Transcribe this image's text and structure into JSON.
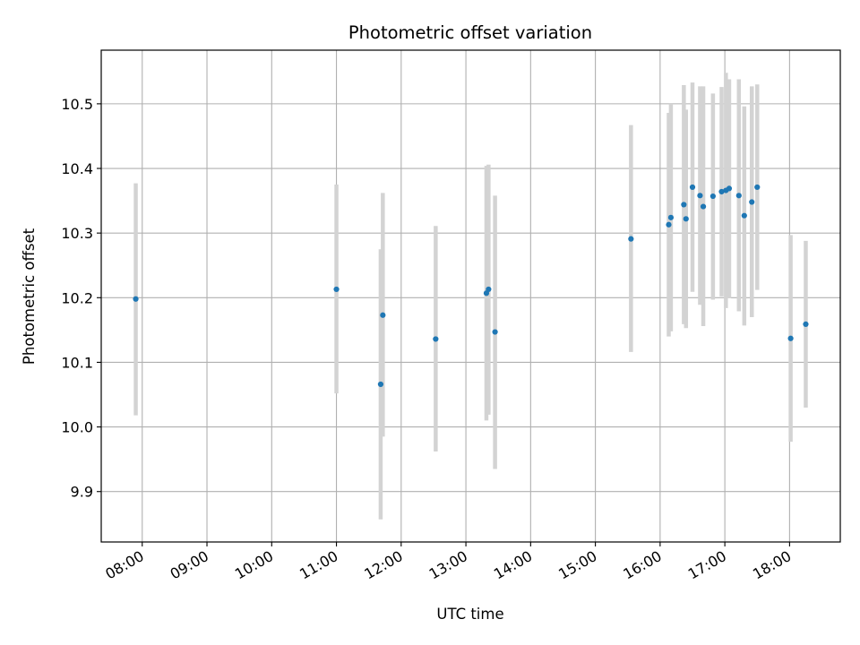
{
  "chart_data": {
    "type": "scatter",
    "title": "Photometric offset variation",
    "xlabel": "UTC time",
    "ylabel": "Photometric offset",
    "grid": true,
    "x_tick_labels": [
      "08:00",
      "09:00",
      "10:00",
      "11:00",
      "12:00",
      "13:00",
      "14:00",
      "15:00",
      "16:00",
      "17:00",
      "18:00"
    ],
    "y_tick_labels": [
      "9.9",
      "10.0",
      "10.1",
      "10.2",
      "10.3",
      "10.4",
      "10.5"
    ],
    "xlim": [
      "07:22",
      "18:47"
    ],
    "ylim": [
      9.822,
      10.583
    ],
    "colors": {
      "point": "#1f77b4",
      "errorbar": "#d3d3d3",
      "grid": "#b0b0b0"
    },
    "series": [
      {
        "points": [
          {
            "x": "07:54",
            "y": 10.198,
            "yerr_low": 10.018,
            "yerr_high": 10.377
          },
          {
            "x": "11:00",
            "y": 10.213,
            "yerr_low": 10.052,
            "yerr_high": 10.375
          },
          {
            "x": "11:41",
            "y": 10.066,
            "yerr_low": 9.857,
            "yerr_high": 10.275
          },
          {
            "x": "11:43",
            "y": 10.173,
            "yerr_low": 9.985,
            "yerr_high": 10.362
          },
          {
            "x": "12:32",
            "y": 10.136,
            "yerr_low": 9.962,
            "yerr_high": 10.311
          },
          {
            "x": "13:19",
            "y": 10.207,
            "yerr_low": 10.01,
            "yerr_high": 10.404
          },
          {
            "x": "13:21",
            "y": 10.213,
            "yerr_low": 10.019,
            "yerr_high": 10.406
          },
          {
            "x": "13:27",
            "y": 10.147,
            "yerr_low": 9.935,
            "yerr_high": 10.358
          },
          {
            "x": "15:33",
            "y": 10.291,
            "yerr_low": 10.116,
            "yerr_high": 10.467
          },
          {
            "x": "16:08",
            "y": 10.313,
            "yerr_low": 10.14,
            "yerr_high": 10.486
          },
          {
            "x": "16:10",
            "y": 10.324,
            "yerr_low": 10.148,
            "yerr_high": 10.5
          },
          {
            "x": "16:22",
            "y": 10.344,
            "yerr_low": 10.159,
            "yerr_high": 10.529
          },
          {
            "x": "16:24",
            "y": 10.322,
            "yerr_low": 10.153,
            "yerr_high": 10.491
          },
          {
            "x": "16:30",
            "y": 10.371,
            "yerr_low": 10.209,
            "yerr_high": 10.533
          },
          {
            "x": "16:37",
            "y": 10.358,
            "yerr_low": 10.189,
            "yerr_high": 10.527
          },
          {
            "x": "16:40",
            "y": 10.341,
            "yerr_low": 10.156,
            "yerr_high": 10.527
          },
          {
            "x": "16:49",
            "y": 10.357,
            "yerr_low": 10.197,
            "yerr_high": 10.516
          },
          {
            "x": "16:57",
            "y": 10.364,
            "yerr_low": 10.202,
            "yerr_high": 10.526
          },
          {
            "x": "17:01",
            "y": 10.366,
            "yerr_low": 10.184,
            "yerr_high": 10.548
          },
          {
            "x": "17:04",
            "y": 10.369,
            "yerr_low": 10.199,
            "yerr_high": 10.538
          },
          {
            "x": "17:13",
            "y": 10.358,
            "yerr_low": 10.179,
            "yerr_high": 10.538
          },
          {
            "x": "17:18",
            "y": 10.327,
            "yerr_low": 10.157,
            "yerr_high": 10.496
          },
          {
            "x": "17:25",
            "y": 10.348,
            "yerr_low": 10.17,
            "yerr_high": 10.527
          },
          {
            "x": "17:30",
            "y": 10.371,
            "yerr_low": 10.212,
            "yerr_high": 10.53
          },
          {
            "x": "18:01",
            "y": 10.137,
            "yerr_low": 9.977,
            "yerr_high": 10.297
          },
          {
            "x": "18:15",
            "y": 10.159,
            "yerr_low": 10.03,
            "yerr_high": 10.288
          }
        ]
      }
    ]
  }
}
